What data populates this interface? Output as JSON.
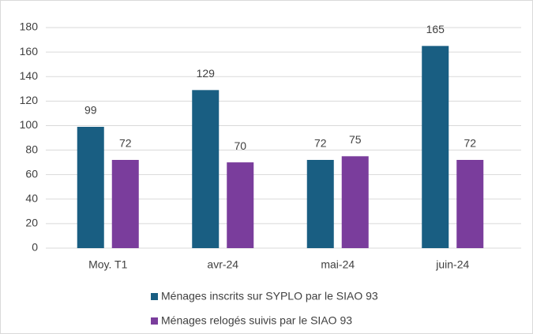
{
  "chart_data": {
    "type": "bar",
    "categories": [
      "Moy. T1",
      "avr-24",
      "mai-24",
      "juin-24"
    ],
    "series": [
      {
        "name": "Ménages inscrits sur SYPLO par le SIAO 93",
        "color": "#195e82",
        "values": [
          99,
          129,
          72,
          165
        ]
      },
      {
        "name": "Ménages relogés suivis par le SIAO 93",
        "color": "#7a3d9c",
        "values": [
          72,
          70,
          75,
          72
        ]
      }
    ],
    "ylim": [
      0,
      180
    ],
    "yticks": [
      0,
      20,
      40,
      60,
      80,
      100,
      120,
      140,
      160,
      180
    ],
    "grid": true,
    "legend": "bottom",
    "data_labels": true
  }
}
